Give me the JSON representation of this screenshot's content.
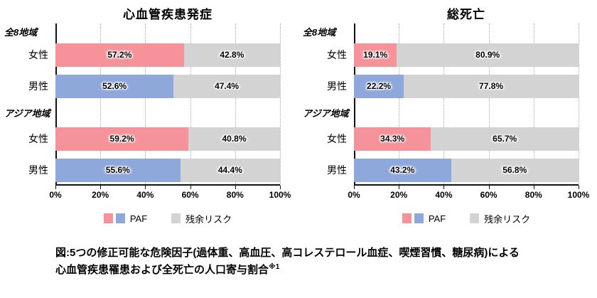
{
  "colors": {
    "paf_female": "#F5929A",
    "paf_male": "#8EA8DC",
    "residual": "#D3D3D3",
    "axis": "#111111",
    "gridline": "#A9A9A9"
  },
  "caption": {
    "line1": "図:5つの修正可能な危険因子(過体重、高血圧、高コレステロール血症、喫煙習慣、糖尿病)による",
    "line2": "心血管疾患罹患および全死亡の人口寄与割合",
    "ref": "※1"
  },
  "chart_data": [
    {
      "type": "bar",
      "orientation": "horizontal",
      "stacked": true,
      "title": "心血管疾患発症",
      "xlim": [
        0,
        100
      ],
      "x_ticks": [
        "0%",
        "20%",
        "40%",
        "60%",
        "80%",
        "100%"
      ],
      "grid": "dotted-vertical",
      "legend_position": "bottom",
      "legend": {
        "paf": "PAF",
        "residual": "残余リスク"
      },
      "categories": [
        "全8地域 女性",
        "全8地域 男性",
        "アジア地域 女性",
        "アジア地域 男性"
      ],
      "series": [
        {
          "name": "PAF",
          "values": [
            57.2,
            52.6,
            59.2,
            55.6
          ]
        },
        {
          "name": "残余リスク",
          "values": [
            42.8,
            47.4,
            40.8,
            44.4
          ]
        }
      ],
      "groups": [
        {
          "label": "全8地域",
          "rows": [
            {
              "category": "女性",
              "paf": 57.2,
              "paf_label": "57.2%",
              "residual": 42.8,
              "residual_label": "42.8%"
            },
            {
              "category": "男性",
              "paf": 52.6,
              "paf_label": "52.6%",
              "residual": 47.4,
              "residual_label": "47.4%"
            }
          ]
        },
        {
          "label": "アジア地域",
          "rows": [
            {
              "category": "女性",
              "paf": 59.2,
              "paf_label": "59.2%",
              "residual": 40.8,
              "residual_label": "40.8%"
            },
            {
              "category": "男性",
              "paf": 55.6,
              "paf_label": "55.6%",
              "residual": 44.4,
              "residual_label": "44.4%"
            }
          ]
        }
      ]
    },
    {
      "type": "bar",
      "orientation": "horizontal",
      "stacked": true,
      "title": "総死亡",
      "xlim": [
        0,
        100
      ],
      "x_ticks": [
        "0%",
        "20%",
        "40%",
        "60%",
        "80%",
        "100%"
      ],
      "grid": "dotted-vertical",
      "legend_position": "bottom",
      "legend": {
        "paf": "PAF",
        "residual": "残余リスク"
      },
      "categories": [
        "全8地域 女性",
        "全8地域 男性",
        "アジア地域 女性",
        "アジア地域 男性"
      ],
      "series": [
        {
          "name": "PAF",
          "values": [
            19.1,
            22.2,
            34.3,
            43.2
          ]
        },
        {
          "name": "残余リスク",
          "values": [
            80.9,
            77.8,
            65.7,
            56.8
          ]
        }
      ],
      "groups": [
        {
          "label": "全8地域",
          "rows": [
            {
              "category": "女性",
              "paf": 19.1,
              "paf_label": "19.1%",
              "residual": 80.9,
              "residual_label": "80.9%"
            },
            {
              "category": "男性",
              "paf": 22.2,
              "paf_label": "22.2%",
              "residual": 77.8,
              "residual_label": "77.8%"
            }
          ]
        },
        {
          "label": "アジア地域",
          "rows": [
            {
              "category": "女性",
              "paf": 34.3,
              "paf_label": "34.3%",
              "residual": 65.7,
              "residual_label": "65.7%"
            },
            {
              "category": "男性",
              "paf": 43.2,
              "paf_label": "43.2%",
              "residual": 56.8,
              "residual_label": "56.8%"
            }
          ]
        }
      ]
    }
  ]
}
